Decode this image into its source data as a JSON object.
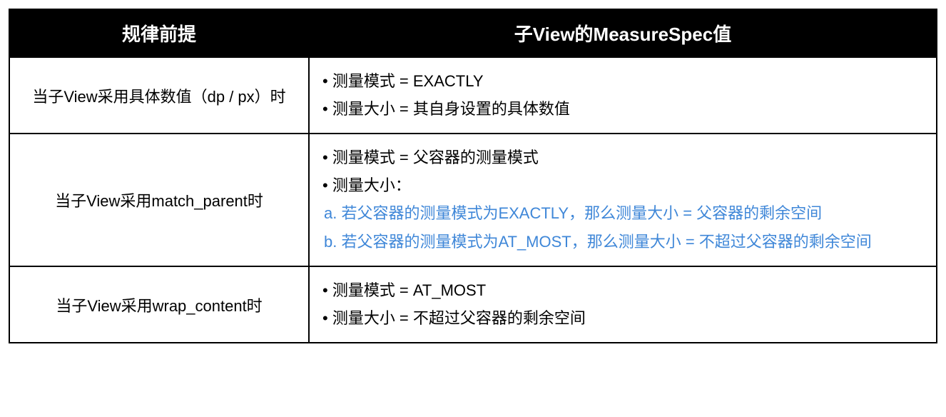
{
  "table": {
    "header_bg": "#000000",
    "header_text": "#ffffff",
    "body_text": "#000000",
    "link_text": "#3f87d8",
    "border_color": "#000000",
    "header_fontsize": 26,
    "body_fontsize": 22,
    "header_fontweight": "700",
    "body_fontweight": "400",
    "left_col_title": "规律前提",
    "right_col_title": "子View的MeasureSpec值",
    "rows": [
      {
        "left": "当子View采用具体数值（dp / px）时",
        "right": [
          {
            "text": "• 测量模式 = EXACTLY",
            "color": "body"
          },
          {
            "text": "• 测量大小 = 其自身设置的具体数值",
            "color": "body"
          }
        ]
      },
      {
        "left": "当子View采用match_parent时",
        "right": [
          {
            "text": "• 测量模式 = 父容器的测量模式",
            "color": "body"
          },
          {
            "text": "• 测量大小：",
            "color": "body"
          },
          {
            "text": "a. 若父容器的测量模式为EXACTLY，那么测量大小 = 父容器的剩余空间",
            "color": "link"
          },
          {
            "text": "b. 若父容器的测量模式为AT_MOST，那么测量大小 = 不超过父容器的剩余空间",
            "color": "link"
          }
        ]
      },
      {
        "left": "当子View采用wrap_content时",
        "right": [
          {
            "text": "• 测量模式 = AT_MOST",
            "color": "body"
          },
          {
            "text": "• 测量大小 = 不超过父容器的剩余空间",
            "color": "body"
          }
        ]
      }
    ]
  }
}
